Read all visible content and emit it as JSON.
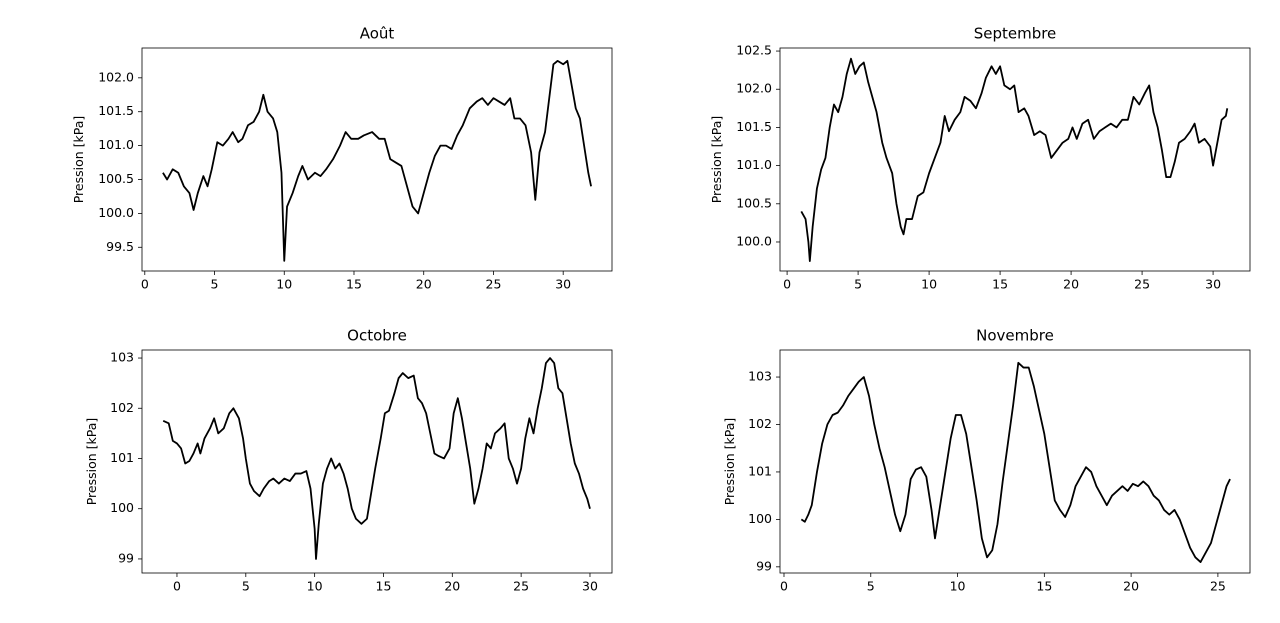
{
  "chart_data": [
    {
      "type": "line",
      "title": "Août",
      "ylabel": "Pression [kPa]",
      "x": [
        1.3,
        1.6,
        2.0,
        2.4,
        2.8,
        3.2,
        3.5,
        3.8,
        4.2,
        4.5,
        4.8,
        5.2,
        5.6,
        6.0,
        6.3,
        6.7,
        7.0,
        7.4,
        7.8,
        8.2,
        8.5,
        8.8,
        9.2,
        9.5,
        9.8,
        10.0,
        10.2,
        10.6,
        11.0,
        11.3,
        11.7,
        12.2,
        12.6,
        13.0,
        13.5,
        14.0,
        14.4,
        14.8,
        15.3,
        15.7,
        16.3,
        16.8,
        17.2,
        17.6,
        18.0,
        18.4,
        18.8,
        19.2,
        19.6,
        20.0,
        20.4,
        20.8,
        21.2,
        21.6,
        22.0,
        22.4,
        22.8,
        23.3,
        23.8,
        24.2,
        24.6,
        25.0,
        25.4,
        25.8,
        26.2,
        26.5,
        26.9,
        27.3,
        27.7,
        28.0,
        28.3,
        28.7,
        29.0,
        29.3,
        29.6,
        30.0,
        30.3,
        30.6,
        30.9,
        31.2,
        31.5,
        31.8,
        32.0
      ],
      "series": [
        {
          "color": "#000000",
          "values": [
            100.6,
            100.5,
            100.65,
            100.6,
            100.4,
            100.3,
            100.05,
            100.3,
            100.55,
            100.4,
            100.65,
            101.05,
            101.0,
            101.1,
            101.2,
            101.05,
            101.1,
            101.3,
            101.35,
            101.5,
            101.75,
            101.5,
            101.4,
            101.2,
            100.6,
            99.3,
            100.1,
            100.3,
            100.55,
            100.7,
            100.5,
            100.6,
            100.55,
            100.65,
            100.8,
            101.0,
            101.2,
            101.1,
            101.1,
            101.15,
            101.2,
            101.1,
            101.1,
            100.8,
            100.75,
            100.7,
            100.4,
            100.1,
            100.0,
            100.3,
            100.6,
            100.85,
            101.0,
            101.0,
            100.95,
            101.15,
            101.3,
            101.55,
            101.65,
            101.7,
            101.6,
            101.7,
            101.65,
            101.6,
            101.7,
            101.4,
            101.4,
            101.3,
            100.9,
            100.2,
            100.9,
            101.2,
            101.7,
            102.2,
            102.25,
            102.2,
            102.25,
            101.9,
            101.55,
            101.4,
            101.0,
            100.6,
            100.4
          ]
        }
      ],
      "xlim": [
        -0.2,
        33.5
      ],
      "ylim": [
        99.15,
        102.44
      ],
      "xticks": [
        0,
        5,
        10,
        15,
        20,
        25,
        30
      ],
      "yticks": [
        99.5,
        {
          "value": 100,
          "label": "100.0"
        },
        100.5,
        {
          "value": 101,
          "label": "101.0"
        },
        101.5,
        {
          "value": 102,
          "label": "102.0"
        }
      ]
    },
    {
      "type": "line",
      "title": "Septembre",
      "ylabel": "Pression [kPa]",
      "x": [
        1.0,
        1.3,
        1.5,
        1.6,
        1.8,
        2.1,
        2.4,
        2.7,
        3.0,
        3.3,
        3.6,
        3.9,
        4.2,
        4.5,
        4.8,
        5.1,
        5.4,
        5.7,
        6.0,
        6.3,
        6.7,
        7.0,
        7.4,
        7.7,
        8.0,
        8.2,
        8.4,
        8.8,
        9.2,
        9.6,
        10.0,
        10.4,
        10.8,
        11.1,
        11.4,
        11.8,
        12.2,
        12.5,
        12.9,
        13.3,
        13.7,
        14.0,
        14.4,
        14.7,
        15.0,
        15.3,
        15.7,
        16.0,
        16.3,
        16.7,
        17.0,
        17.4,
        17.8,
        18.2,
        18.6,
        19.0,
        19.4,
        19.8,
        20.1,
        20.4,
        20.8,
        21.2,
        21.6,
        22.0,
        22.4,
        22.8,
        23.2,
        23.6,
        24.0,
        24.4,
        24.8,
        25.2,
        25.5,
        25.8,
        26.1,
        26.4,
        26.7,
        27.0,
        27.3,
        27.6,
        28.0,
        28.4,
        28.7,
        29.0,
        29.4,
        29.8,
        30.0,
        30.3,
        30.6,
        30.9,
        31.0
      ],
      "series": [
        {
          "color": "#000000",
          "values": [
            100.4,
            100.3,
            100.0,
            99.75,
            100.2,
            100.7,
            100.95,
            101.1,
            101.5,
            101.8,
            101.7,
            101.9,
            102.2,
            102.4,
            102.2,
            102.3,
            102.35,
            102.1,
            101.9,
            101.7,
            101.3,
            101.1,
            100.9,
            100.5,
            100.2,
            100.1,
            100.3,
            100.3,
            100.6,
            100.65,
            100.9,
            101.1,
            101.3,
            101.65,
            101.45,
            101.6,
            101.7,
            101.9,
            101.85,
            101.75,
            101.95,
            102.15,
            102.3,
            102.2,
            102.3,
            102.05,
            102.0,
            102.05,
            101.7,
            101.75,
            101.65,
            101.4,
            101.45,
            101.4,
            101.1,
            101.2,
            101.3,
            101.35,
            101.5,
            101.35,
            101.55,
            101.6,
            101.35,
            101.45,
            101.5,
            101.55,
            101.5,
            101.6,
            101.6,
            101.9,
            101.8,
            101.95,
            102.05,
            101.7,
            101.5,
            101.2,
            100.85,
            100.85,
            101.05,
            101.3,
            101.35,
            101.45,
            101.55,
            101.3,
            101.35,
            101.25,
            101.0,
            101.3,
            101.6,
            101.65,
            101.75
          ]
        }
      ],
      "xlim": [
        -0.5,
        32.6
      ],
      "ylim": [
        99.62,
        102.54
      ],
      "xticks": [
        0,
        5,
        10,
        15,
        20,
        25,
        30
      ],
      "yticks": [
        {
          "value": 100,
          "label": "100.0"
        },
        100.5,
        {
          "value": 101,
          "label": "101.0"
        },
        101.5,
        {
          "value": 102,
          "label": "102.0"
        },
        102.5
      ]
    },
    {
      "type": "line",
      "title": "Octobre",
      "ylabel": "Pression [kPa]",
      "x": [
        -1.0,
        -0.6,
        -0.3,
        0.0,
        0.3,
        0.6,
        0.9,
        1.2,
        1.5,
        1.7,
        2.0,
        2.4,
        2.7,
        3.0,
        3.4,
        3.8,
        4.1,
        4.5,
        4.8,
        5.0,
        5.3,
        5.6,
        6.0,
        6.3,
        6.7,
        7.0,
        7.4,
        7.8,
        8.2,
        8.6,
        9.0,
        9.4,
        9.7,
        10.0,
        10.1,
        10.3,
        10.6,
        10.9,
        11.2,
        11.5,
        11.8,
        12.1,
        12.4,
        12.7,
        13.0,
        13.4,
        13.8,
        14.1,
        14.4,
        14.8,
        15.1,
        15.4,
        15.8,
        16.1,
        16.4,
        16.8,
        17.2,
        17.5,
        17.8,
        18.1,
        18.4,
        18.7,
        19.0,
        19.4,
        19.8,
        20.1,
        20.4,
        20.7,
        21.0,
        21.3,
        21.6,
        21.9,
        22.2,
        22.5,
        22.8,
        23.1,
        23.5,
        23.8,
        24.1,
        24.4,
        24.7,
        25.0,
        25.3,
        25.6,
        25.9,
        26.2,
        26.5,
        26.8,
        27.1,
        27.4,
        27.7,
        28.0,
        28.3,
        28.6,
        28.9,
        29.2,
        29.5,
        29.8,
        30.0
      ],
      "series": [
        {
          "color": "#000000",
          "values": [
            101.75,
            101.7,
            101.35,
            101.3,
            101.2,
            100.9,
            100.95,
            101.1,
            101.3,
            101.1,
            101.4,
            101.6,
            101.8,
            101.5,
            101.6,
            101.9,
            102.0,
            101.8,
            101.4,
            101.0,
            100.5,
            100.35,
            100.25,
            100.4,
            100.55,
            100.6,
            100.5,
            100.6,
            100.55,
            100.7,
            100.7,
            100.75,
            100.4,
            99.6,
            99.0,
            99.7,
            100.5,
            100.8,
            101.0,
            100.8,
            100.9,
            100.7,
            100.4,
            100.0,
            99.8,
            99.7,
            99.8,
            100.3,
            100.8,
            101.4,
            101.9,
            101.95,
            102.3,
            102.6,
            102.7,
            102.6,
            102.65,
            102.2,
            102.1,
            101.9,
            101.5,
            101.1,
            101.05,
            101.0,
            101.2,
            101.9,
            102.2,
            101.8,
            101.3,
            100.8,
            100.1,
            100.4,
            100.8,
            101.3,
            101.2,
            101.5,
            101.6,
            101.7,
            101.0,
            100.8,
            100.5,
            100.8,
            101.4,
            101.8,
            101.5,
            102.0,
            102.4,
            102.9,
            103.0,
            102.9,
            102.4,
            102.3,
            101.8,
            101.3,
            100.9,
            100.7,
            100.4,
            100.2,
            100.0
          ]
        }
      ],
      "xlim": [
        -2.54,
        31.6
      ],
      "ylim": [
        98.72,
        103.16
      ],
      "xticks": [
        0,
        5,
        10,
        15,
        20,
        25,
        30
      ],
      "yticks": [
        99,
        100,
        101,
        102,
        103
      ]
    },
    {
      "type": "line",
      "title": "Novembre",
      "ylabel": "Pression [kPa]",
      "x": [
        1.0,
        1.2,
        1.4,
        1.6,
        1.9,
        2.2,
        2.5,
        2.8,
        3.1,
        3.4,
        3.7,
        4.0,
        4.3,
        4.6,
        4.9,
        5.2,
        5.5,
        5.8,
        6.1,
        6.4,
        6.7,
        7.0,
        7.3,
        7.6,
        7.9,
        8.2,
        8.5,
        8.7,
        9.0,
        9.3,
        9.6,
        9.9,
        10.2,
        10.5,
        10.8,
        11.1,
        11.4,
        11.7,
        12.0,
        12.3,
        12.6,
        12.9,
        13.2,
        13.5,
        13.8,
        14.1,
        14.4,
        14.7,
        15.0,
        15.3,
        15.6,
        15.9,
        16.2,
        16.5,
        16.8,
        17.1,
        17.4,
        17.7,
        18.0,
        18.3,
        18.6,
        18.9,
        19.2,
        19.5,
        19.8,
        20.1,
        20.4,
        20.7,
        21.0,
        21.3,
        21.6,
        21.9,
        22.2,
        22.5,
        22.8,
        23.1,
        23.4,
        23.7,
        24.0,
        24.3,
        24.6,
        24.9,
        25.2,
        25.5,
        25.7
      ],
      "series": [
        {
          "color": "#000000",
          "values": [
            100.0,
            99.95,
            100.1,
            100.3,
            101.0,
            101.6,
            102.0,
            102.2,
            102.25,
            102.4,
            102.6,
            102.75,
            102.9,
            103.0,
            102.6,
            102.0,
            101.5,
            101.1,
            100.6,
            100.1,
            99.75,
            100.1,
            100.85,
            101.05,
            101.1,
            100.9,
            100.2,
            99.6,
            100.3,
            101.0,
            101.7,
            102.2,
            102.2,
            101.8,
            101.1,
            100.4,
            99.6,
            99.2,
            99.35,
            99.9,
            100.8,
            101.6,
            102.4,
            103.3,
            103.2,
            103.2,
            102.8,
            102.3,
            101.8,
            101.1,
            100.4,
            100.2,
            100.05,
            100.3,
            100.7,
            100.9,
            101.1,
            101.0,
            100.7,
            100.5,
            100.3,
            100.5,
            100.6,
            100.7,
            100.6,
            100.75,
            100.7,
            100.8,
            100.7,
            100.5,
            100.4,
            100.2,
            100.1,
            100.2,
            100.0,
            99.7,
            99.4,
            99.2,
            99.1,
            99.3,
            99.5,
            99.9,
            100.3,
            100.7,
            100.85
          ]
        }
      ],
      "xlim": [
        -0.23,
        26.85
      ],
      "ylim": [
        98.87,
        103.57
      ],
      "xticks": [
        0,
        5,
        10,
        15,
        20,
        25
      ],
      "yticks": [
        99,
        100,
        101,
        102,
        103
      ]
    }
  ]
}
